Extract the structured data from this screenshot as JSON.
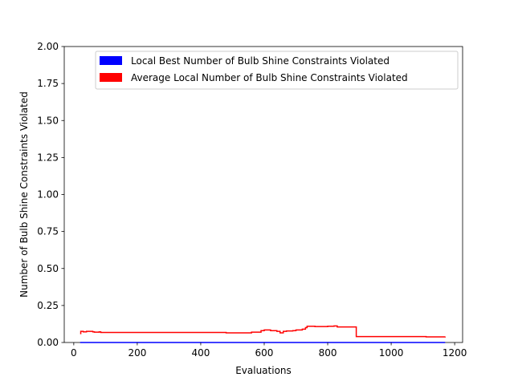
{
  "chart_data": {
    "type": "line",
    "title": "",
    "xlabel": "Evaluations",
    "ylabel": "Number of Bulb Shine Constraints Violated",
    "xlim": [
      -30,
      1225
    ],
    "ylim": [
      0,
      2
    ],
    "xticks": [
      0,
      200,
      400,
      600,
      800,
      1000,
      1200
    ],
    "xtick_labels": [
      "0",
      "200",
      "400",
      "600",
      "800",
      "1000",
      "1200"
    ],
    "yticks": [
      0,
      0.25,
      0.5,
      0.75,
      1.0,
      1.25,
      1.5,
      1.75,
      2.0
    ],
    "ytick_labels": [
      "0.00",
      "0.25",
      "0.50",
      "0.75",
      "1.00",
      "1.25",
      "1.50",
      "1.75",
      "2.00"
    ],
    "grid": false,
    "legend_position": "upper-right",
    "series": [
      {
        "name": "Local Best Number of Bulb Shine Constraints Violated",
        "color": "#0000ff",
        "step": true,
        "x": [
          20,
          1170
        ],
        "y": [
          0,
          0
        ]
      },
      {
        "name": "Average Local Number of Bulb Shine Constraints Violated",
        "color": "#ff0000",
        "step": true,
        "x": [
          20,
          22,
          30,
          40,
          60,
          65,
          80,
          85,
          100,
          200,
          300,
          400,
          470,
          480,
          500,
          560,
          590,
          600,
          620,
          640,
          650,
          660,
          670,
          690,
          700,
          720,
          730,
          735,
          760,
          800,
          820,
          830,
          890,
          1000,
          1100,
          1110,
          1170
        ],
        "y": [
          0.06,
          0.075,
          0.072,
          0.075,
          0.072,
          0.07,
          0.072,
          0.068,
          0.068,
          0.068,
          0.068,
          0.068,
          0.068,
          0.065,
          0.065,
          0.07,
          0.08,
          0.085,
          0.08,
          0.075,
          0.065,
          0.075,
          0.078,
          0.08,
          0.085,
          0.09,
          0.1,
          0.11,
          0.108,
          0.11,
          0.112,
          0.105,
          0.04,
          0.04,
          0.04,
          0.038,
          0.04
        ]
      }
    ]
  }
}
